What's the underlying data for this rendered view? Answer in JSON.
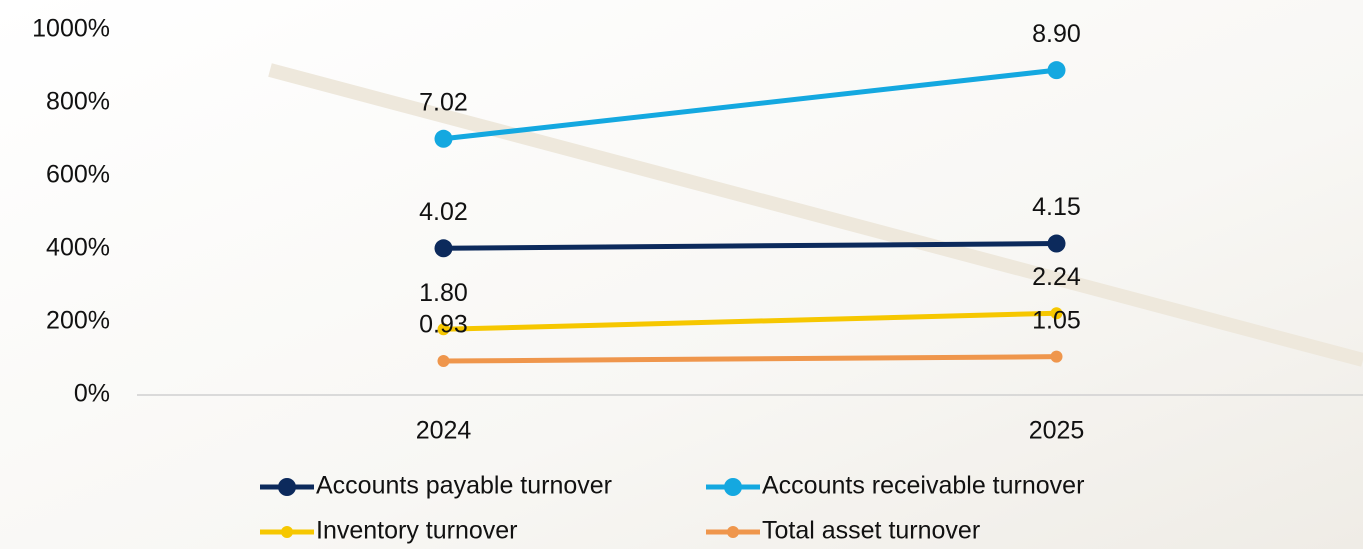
{
  "chart_data": {
    "type": "line",
    "categories": [
      "2024",
      "2025"
    ],
    "series": [
      {
        "name": "Accounts payable turnover",
        "color": "#0c2a5c",
        "values": [
          402,
          415
        ],
        "value_labels": [
          "4.02",
          "4.15"
        ]
      },
      {
        "name": "Accounts receivable turnover",
        "color": "#14a8e0",
        "values": [
          702,
          890
        ],
        "value_labels": [
          "7.02",
          "8.90"
        ]
      },
      {
        "name": "Inventory turnover",
        "color": "#f6c700",
        "values": [
          180,
          224
        ],
        "value_labels": [
          "1.80",
          "2.24"
        ]
      },
      {
        "name": "Total asset turnover",
        "color": "#ef964c",
        "values": [
          93,
          105
        ],
        "value_labels": [
          "0.93",
          "1.05"
        ]
      }
    ],
    "ylim": [
      0,
      1000
    ],
    "yticks": [
      {
        "value": 0,
        "label": "0%"
      },
      {
        "value": 200,
        "label": "200%"
      },
      {
        "value": 400,
        "label": "400%"
      },
      {
        "value": 600,
        "label": "600%"
      },
      {
        "value": 800,
        "label": "800%"
      },
      {
        "value": 1000,
        "label": "1000%"
      }
    ],
    "legend": "bottom"
  }
}
